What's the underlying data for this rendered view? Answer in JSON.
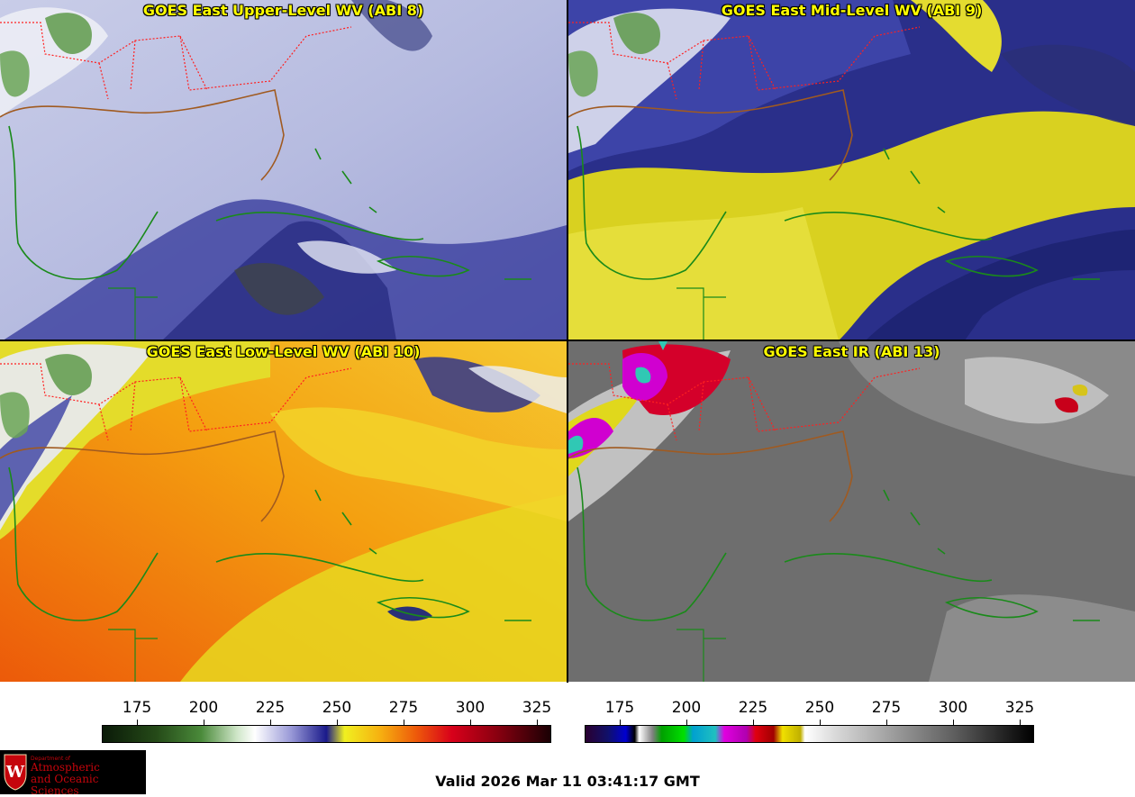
{
  "panels": [
    {
      "title": "GOES East Upper-Level WV (ABI 8)",
      "theme": "wv8"
    },
    {
      "title": "GOES East Mid-Level WV (ABI 9)",
      "theme": "wv9"
    },
    {
      "title": "GOES East Low-Level WV (ABI 10)",
      "theme": "wv10"
    },
    {
      "title": "GOES East IR (ABI 13)",
      "theme": "ir13"
    }
  ],
  "colorbars": {
    "wv": {
      "ticks": [
        "175",
        "200",
        "225",
        "250",
        "275",
        "300",
        "325"
      ]
    },
    "ir": {
      "ticks": [
        "175",
        "200",
        "225",
        "250",
        "275",
        "300",
        "325"
      ]
    }
  },
  "footer": {
    "valid": "Valid 2026 Mar 11 03:41:17 GMT",
    "logo_small": "Department of",
    "logo_line1": "Atmospheric",
    "logo_line2": "and Oceanic Sciences"
  },
  "colors": {
    "state_borders": "#ff2020",
    "coastline": "#a05a20",
    "island_outlines": "#1a8a1a",
    "title_text": "#ffff00"
  }
}
